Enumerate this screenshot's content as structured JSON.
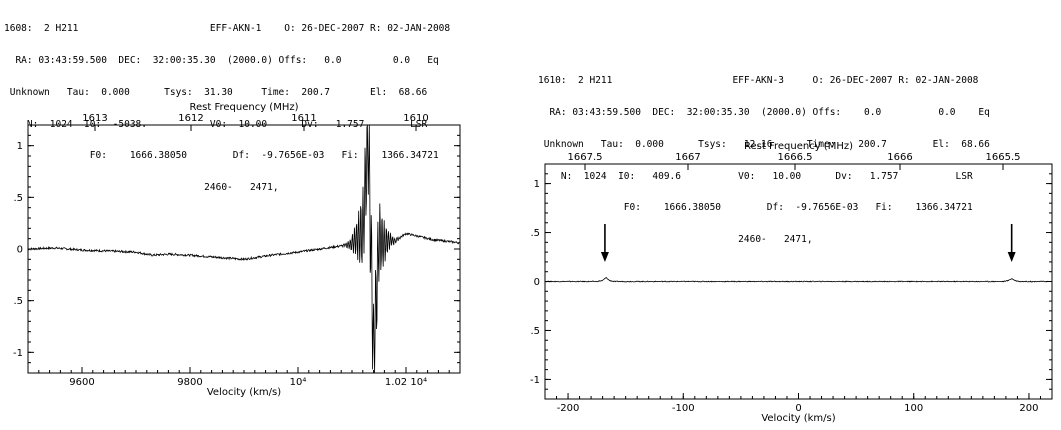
{
  "panels": [
    {
      "header": [
        "1608:  2 H211                       EFF-AKN-1    O: 26-DEC-2007 R: 02-JAN-2008",
        "  RA: 03:43:59.500  DEC:  32:00:35.30  (2000.0) Offs:   0.0         0.0   Eq",
        " Unknown   Tau:  0.000      Tsys:  31.30     Time:  200.7       El:  68.66",
        "    N:  1024  I0:  -5038.           V0:  10.00      Dv:   1.757        LSR",
        "               F0:    1666.38050        Df:  -9.7656E-03   Fi:    1366.34721",
        "                                   2460-   2471,"
      ],
      "chart_data": {
        "type": "line",
        "title": "",
        "top_axis_label": "Rest Frequency (MHz)",
        "top_tick_labels": [
          "1613",
          "1612",
          "1611",
          "1610"
        ],
        "xlabel": "Velocity (km/s)",
        "ylabel": "",
        "xlim": [
          9500,
          10300
        ],
        "ylim": [
          -1.2,
          1.2
        ],
        "x_tick_labels": [
          "9600",
          "9800",
          "10⁴",
          "1.02 10⁴"
        ],
        "y_tick_labels": [
          "1",
          ".5",
          "0",
          ".5",
          "-1"
        ],
        "series": [
          {
            "x": [
              9500,
              9550,
              9600,
              9650,
              9700,
              9730,
              9760,
              9800,
              9850,
              9900,
              9950,
              10000,
              10040,
              10080,
              10100,
              10110,
              10120,
              10130,
              10140,
              10150,
              10160,
              10170,
              10180,
              10200,
              10250,
              10300
            ],
            "values": [
              0.0,
              0.01,
              -0.01,
              -0.02,
              -0.03,
              -0.06,
              -0.05,
              -0.06,
              -0.08,
              -0.1,
              -0.06,
              -0.03,
              0.0,
              0.03,
              0.05,
              0.1,
              0.18,
              1.1,
              -1.05,
              0.1,
              0.06,
              0.08,
              0.08,
              0.15,
              0.09,
              0.06
            ]
          }
        ],
        "grid": false,
        "legend": "none"
      }
    },
    {
      "header": [
        "1610:  2 H211                     EFF-AKN-3     O: 26-DEC-2007 R: 02-JAN-2008",
        "  RA: 03:43:59.500  DEC:  32:00:35.30  (2000.0) Offs:    0.0          0.0    Eq",
        " Unknown   Tau:  0.000      Tsys:   12.16      Time:    200.7        El:  68.66",
        "    N:  1024  I0:   409.6          V0:   10.00      Dv:   1.757          LSR",
        "               F0:    1666.38050        Df:  -9.7656E-03   Fi:    1366.34721",
        "                                   2460-   2471,"
      ],
      "chart_data": {
        "type": "line",
        "title": "",
        "top_axis_label": "Rest Frequency (MHz)",
        "top_tick_labels": [
          "1667.5",
          "1667",
          "1666.5",
          "1666",
          "1665.5"
        ],
        "xlabel": "Velocity (km/s)",
        "ylabel": "",
        "xlim": [
          -220,
          220
        ],
        "ylim": [
          -1.2,
          1.2
        ],
        "x_tick_labels": [
          "-200",
          "-100",
          "0",
          "100",
          "200"
        ],
        "y_tick_labels": [
          "1",
          ".5",
          "0",
          ".5",
          "-1"
        ],
        "series": [
          {
            "x": [
              -220,
              -175,
              -170,
              -167,
              -164,
              -160,
              -100,
              0,
              100,
              178,
              182,
              185,
              188,
              192,
              220
            ],
            "values": [
              0.0,
              0.0,
              0.01,
              0.04,
              0.01,
              0.0,
              0.0,
              0.0,
              0.0,
              0.0,
              0.01,
              0.03,
              0.01,
              0.0,
              0.0
            ]
          }
        ],
        "annotations": [
          {
            "type": "arrow",
            "x": -168,
            "label": ""
          },
          {
            "type": "arrow",
            "x": 185,
            "label": ""
          }
        ],
        "grid": false,
        "legend": "none"
      }
    }
  ]
}
